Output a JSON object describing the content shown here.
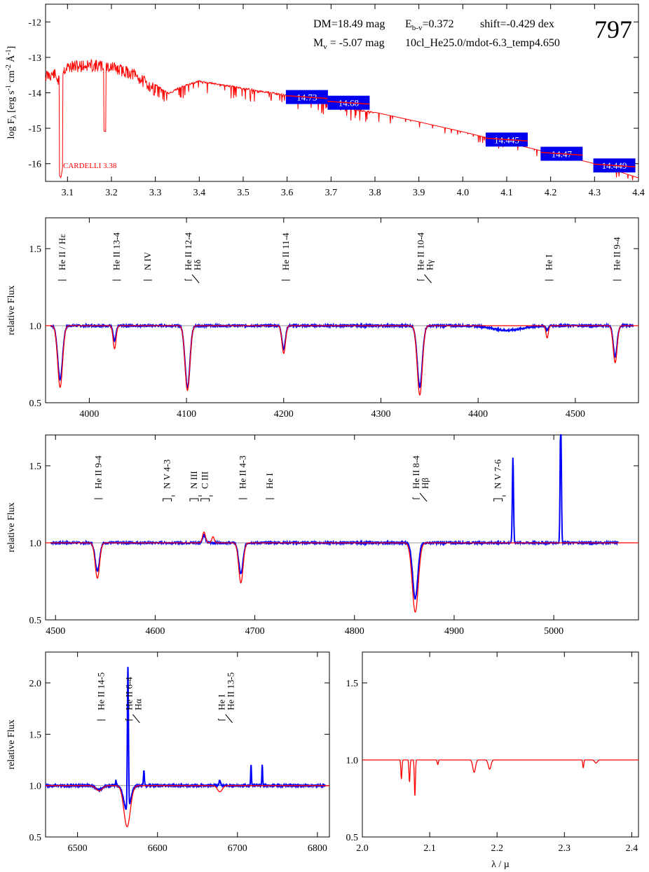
{
  "figure": {
    "id_label": "797",
    "sed_params": {
      "dm": "DM=18.49 mag",
      "ebv_main": "E",
      "ebv_sub": "b-v",
      "ebv_val": "=0.372",
      "shift": "shift=-0.429 dex",
      "mv_main": "M",
      "mv_sub": "v",
      "mv_val": " =  -5.07 mag",
      "model": "10cl_He25.0/mdot-6.3_temp4.650"
    },
    "sed_note": "CARDELLI 3.38",
    "ylabel_sed": "log Fλ [erg s⁻¹ cm⁻² Å⁻¹]",
    "ylabel_flux": "relative Flux",
    "xlabel_bottom": "λ / µ"
  },
  "colors": {
    "model": "#ff0000",
    "observed": "#0000ff",
    "box": "#0000ee",
    "grid": "#999999"
  },
  "chart_data": [
    {
      "id": "sed",
      "type": "line",
      "xlim": [
        3.05,
        4.4
      ],
      "ylim": [
        -16.5,
        -11.5
      ],
      "xticks": [
        3.1,
        3.2,
        3.3,
        3.4,
        3.5,
        3.6,
        3.7,
        3.8,
        3.9,
        4.0,
        4.1,
        4.2,
        4.3,
        4.4
      ],
      "xtick_labels": [
        "3.1",
        "3.2",
        "3.3",
        "3.4",
        "3.5",
        "3.6",
        "3.7",
        "3.8",
        "3.9",
        "4.0",
        "4.1",
        "4.2",
        "4.3",
        "4.4"
      ],
      "yticks": [
        -12,
        -13,
        -14,
        -15,
        -16
      ],
      "ytick_labels": [
        "-12",
        "-13",
        "-14",
        "-15",
        "-16"
      ],
      "model_curve": {
        "x": [
          3.05,
          3.07,
          3.085,
          3.09,
          3.1,
          3.15,
          3.2,
          3.25,
          3.3,
          3.33,
          3.36,
          3.4,
          3.45,
          3.5,
          3.6,
          3.7,
          3.8,
          3.9,
          4.0,
          4.1,
          4.2,
          4.3,
          4.4
        ],
        "y": [
          -13.35,
          -13.3,
          -13.6,
          -13.2,
          -13.1,
          -13.05,
          -13.1,
          -13.3,
          -13.75,
          -14.0,
          -13.8,
          -13.65,
          -13.75,
          -13.85,
          -14.05,
          -14.3,
          -14.55,
          -14.82,
          -15.1,
          -15.4,
          -15.7,
          -16.0,
          -16.4
        ]
      },
      "photometry": [
        {
          "x": 3.645,
          "y": -14.12,
          "label": "14.73"
        },
        {
          "x": 3.74,
          "y": -14.28,
          "label": "14.68"
        },
        {
          "x": 4.1,
          "y": -15.32,
          "label": "14.445"
        },
        {
          "x": 4.225,
          "y": -15.72,
          "label": "14.47"
        },
        {
          "x": 4.345,
          "y": -16.05,
          "label": "14.449"
        }
      ]
    },
    {
      "id": "blue",
      "type": "line",
      "xlim": [
        3955,
        4565
      ],
      "ylim": [
        0.5,
        1.7
      ],
      "xticks": [
        4000,
        4100,
        4200,
        4300,
        4400,
        4500
      ],
      "xtick_labels": [
        "4000",
        "4100",
        "4200",
        "4300",
        "4400",
        "4500"
      ],
      "yticks": [
        0.5,
        1.0,
        1.5
      ],
      "ytick_labels": [
        "0.5",
        "1.0",
        "1.5"
      ],
      "continuum": 1.0,
      "model_lines": [
        {
          "x": 3970,
          "depth": 0.4,
          "width": 2.5
        },
        {
          "x": 4026,
          "depth": 0.15,
          "width": 1.5
        },
        {
          "x": 4101,
          "depth": 0.42,
          "width": 2.5
        },
        {
          "x": 4200,
          "depth": 0.18,
          "width": 1.8
        },
        {
          "x": 4340,
          "depth": 0.45,
          "width": 2.6
        },
        {
          "x": 4471,
          "depth": 0.08,
          "width": 1.2
        },
        {
          "x": 4541,
          "depth": 0.24,
          "width": 2.0
        }
      ],
      "observed_lines": [
        {
          "x": 3970,
          "depth": 0.35,
          "width": 2.5
        },
        {
          "x": 4026,
          "depth": 0.1,
          "width": 1.5
        },
        {
          "x": 4101,
          "depth": 0.4,
          "width": 2.5
        },
        {
          "x": 4200,
          "depth": 0.15,
          "width": 1.8
        },
        {
          "x": 4340,
          "depth": 0.4,
          "width": 2.6
        },
        {
          "x": 4430,
          "depth": 0.03,
          "width": 15
        },
        {
          "x": 4471,
          "depth": 0.03,
          "width": 1.2
        },
        {
          "x": 4541,
          "depth": 0.2,
          "width": 2.0
        }
      ],
      "line_ids": [
        {
          "x": 3970,
          "text": "He II / Hε",
          "text2": "",
          "bracket": "single"
        },
        {
          "x": 4026,
          "text": "He II 13-4",
          "text2": "",
          "bracket": "single"
        },
        {
          "x": 4058,
          "text": "N IV",
          "text2": "",
          "bracket": "single"
        },
        {
          "x": 4100,
          "text": "He II 12-4",
          "text2": "Hδ",
          "bracket": "fork"
        },
        {
          "x": 4200,
          "text": "He II 11-4",
          "text2": "",
          "bracket": "single"
        },
        {
          "x": 4339,
          "text": "He II 10-4",
          "text2": "Hγ",
          "bracket": "fork"
        },
        {
          "x": 4471,
          "text": "He I",
          "text2": "",
          "bracket": "single"
        },
        {
          "x": 4541,
          "text": "He II 9-4",
          "text2": "",
          "bracket": "single"
        }
      ]
    },
    {
      "id": "green",
      "type": "line",
      "xlim": [
        4490,
        5085
      ],
      "ylim": [
        0.5,
        1.7
      ],
      "xticks": [
        4500,
        4600,
        4700,
        4800,
        4900,
        5000
      ],
      "xtick_labels": [
        "4500",
        "4600",
        "4700",
        "4800",
        "4900",
        "5000"
      ],
      "yticks": [
        0.5,
        1.0,
        1.5
      ],
      "ytick_labels": [
        "0.5",
        "1.0",
        "1.5"
      ],
      "continuum": 1.0,
      "model_lines": [
        {
          "x": 4542,
          "depth": 0.23,
          "width": 2.2
        },
        {
          "x": 4686,
          "depth": 0.26,
          "width": 2.2
        },
        {
          "x": 4861,
          "depth": 0.45,
          "width": 3.0
        },
        {
          "x": 4649,
          "depth": -0.07,
          "width": 1.5
        },
        {
          "x": 4658,
          "depth": -0.04,
          "width": 1.2
        }
      ],
      "observed_lines": [
        {
          "x": 4542,
          "depth": 0.18,
          "width": 2.2
        },
        {
          "x": 4686,
          "depth": 0.2,
          "width": 2.2
        },
        {
          "x": 4861,
          "depth": 0.36,
          "width": 2.6
        },
        {
          "x": 4649,
          "depth": -0.05,
          "width": 1.5
        },
        {
          "x": 4959,
          "depth": -0.55,
          "width": 0.6
        },
        {
          "x": 5007,
          "depth": -0.9,
          "width": 0.6
        }
      ],
      "line_ids": [
        {
          "x": 4541,
          "text": "He II 9-4",
          "text2": "",
          "bracket": "single"
        },
        {
          "x": 4610,
          "text": "N V 4-3",
          "text2": "",
          "bracket": "pair"
        },
        {
          "x": 4637,
          "text": "N III",
          "text2": "",
          "bracket": "pair"
        },
        {
          "x": 4648,
          "text": "C III",
          "text2": "",
          "bracket": "pair-right"
        },
        {
          "x": 4686,
          "text": "He II 4-3",
          "text2": "",
          "bracket": "single"
        },
        {
          "x": 4713,
          "text": "He I",
          "text2": "",
          "bracket": "single"
        },
        {
          "x": 4860,
          "text": "He II 8-4",
          "text2": "Hβ",
          "bracket": "fork"
        },
        {
          "x": 4942,
          "text": "N V 7-6",
          "text2": "",
          "bracket": "pair"
        }
      ]
    },
    {
      "id": "red",
      "type": "line",
      "xlim": [
        6460,
        6815
      ],
      "ylim": [
        0.5,
        2.3
      ],
      "xticks": [
        6500,
        6600,
        6700,
        6800
      ],
      "xtick_labels": [
        "6500",
        "6600",
        "6700",
        "6800"
      ],
      "yticks": [
        0.5,
        1.0,
        1.5,
        2.0
      ],
      "ytick_labels": [
        "0.5",
        "1.0",
        "1.5",
        "2.0"
      ],
      "continuum": 1.0,
      "model_lines": [
        {
          "x": 6527,
          "depth": 0.05,
          "width": 4
        },
        {
          "x": 6562,
          "depth": 0.4,
          "width": 4
        },
        {
          "x": 6678,
          "depth": 0.06,
          "width": 3
        }
      ],
      "observed_lines": [
        {
          "x": 6527,
          "depth": 0.04,
          "width": 4
        },
        {
          "x": 6548,
          "depth": -0.05,
          "width": 0.5
        },
        {
          "x": 6563,
          "depth": -1.4,
          "width": 0.7
        },
        {
          "x": 6562,
          "depth": 0.25,
          "width": 4
        },
        {
          "x": 6583,
          "depth": -0.15,
          "width": 0.6
        },
        {
          "x": 6678,
          "depth": -0.05,
          "width": 1
        },
        {
          "x": 6717,
          "depth": -0.2,
          "width": 0.5
        },
        {
          "x": 6731,
          "depth": -0.2,
          "width": 0.5
        }
      ],
      "line_ids": [
        {
          "x": 6527,
          "text": "He II 14-5",
          "text2": "",
          "bracket": "single"
        },
        {
          "x": 6562,
          "text": "He II 6-4",
          "text2": "Hα",
          "bracket": "fork"
        },
        {
          "x": 6678,
          "text": "He I",
          "text2": "He II 13-5",
          "text2_is_second": true,
          "bracket": "fork"
        }
      ]
    },
    {
      "id": "ir",
      "type": "line",
      "xlim": [
        2.0,
        2.41
      ],
      "ylim": [
        0.5,
        1.7
      ],
      "xticks": [
        2.0,
        2.1,
        2.2,
        2.3,
        2.4
      ],
      "xtick_labels": [
        "2.0",
        "2.1",
        "2.2",
        "2.3",
        "2.4"
      ],
      "yticks": [
        0.5,
        1.0,
        1.5
      ],
      "ytick_labels": [
        "0.5",
        "1.0",
        "1.5"
      ],
      "continuum": 1.0,
      "model_lines": [
        {
          "x": 2.058,
          "depth": 0.12,
          "width": 0.0008
        },
        {
          "x": 2.07,
          "depth": 0.14,
          "width": 0.0008
        },
        {
          "x": 2.078,
          "depth": 0.23,
          "width": 0.0008
        },
        {
          "x": 2.112,
          "depth": 0.03,
          "width": 0.0008
        },
        {
          "x": 2.166,
          "depth": 0.08,
          "width": 0.002
        },
        {
          "x": 2.189,
          "depth": 0.06,
          "width": 0.002
        },
        {
          "x": 2.328,
          "depth": 0.05,
          "width": 0.0008
        },
        {
          "x": 2.347,
          "depth": 0.02,
          "width": 0.002
        }
      ],
      "observed_lines": []
    }
  ]
}
